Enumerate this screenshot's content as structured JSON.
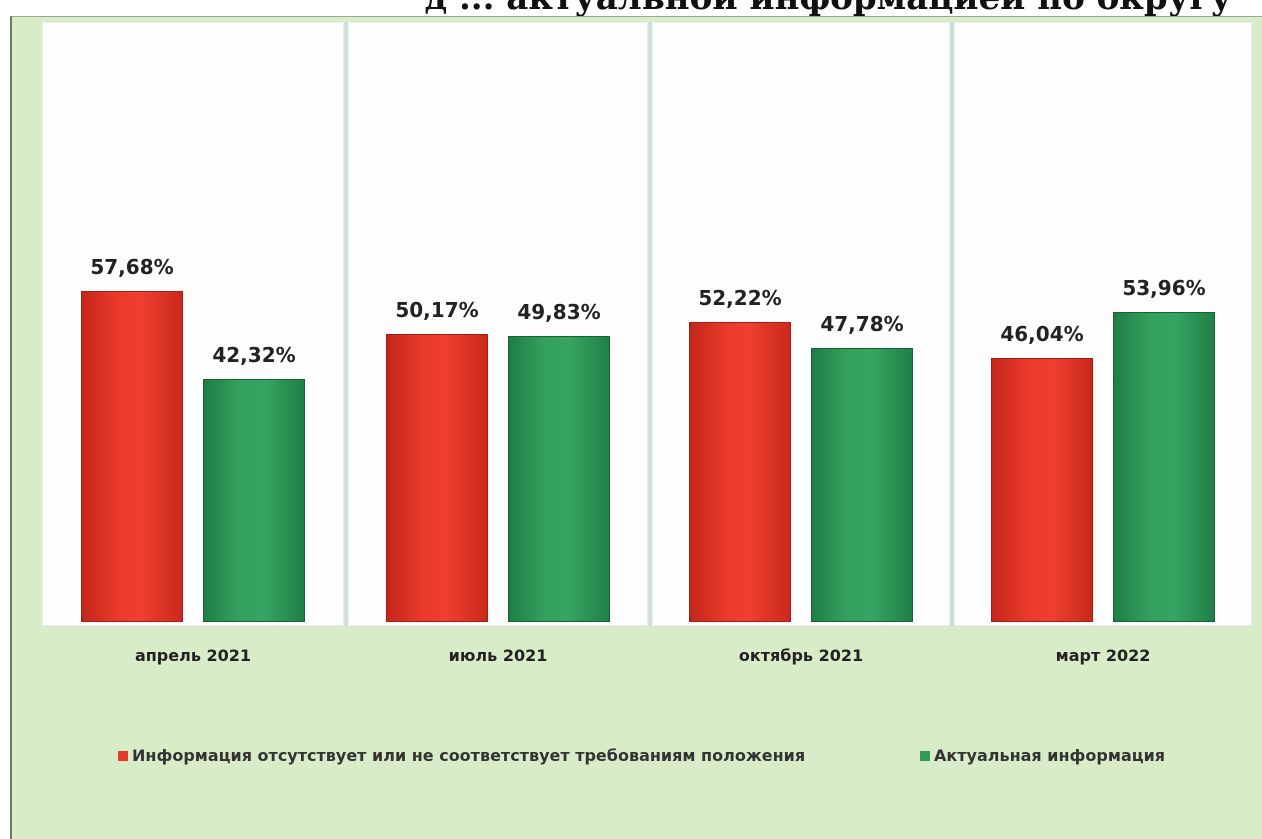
{
  "header": {
    "title_fragment": "д ... актуальной информацией по округу"
  },
  "chart_data": {
    "type": "bar",
    "categories": [
      "апрель 2021",
      "июль 2021",
      "октябрь 2021",
      "март 2022"
    ],
    "series": [
      {
        "name": "Информация отсутствует или не соответствует требованиям положения",
        "color": "#e53a2b",
        "values": [
          57.68,
          50.17,
          52.22,
          46.04
        ],
        "labels": [
          "57,68%",
          "50,17%",
          "52,22%",
          "46,04%"
        ]
      },
      {
        "name": "Актуальная информация",
        "color": "#2f9a59",
        "values": [
          42.32,
          49.83,
          47.78,
          53.96
        ],
        "labels": [
          "42,32%",
          "49,83%",
          "47,78%",
          "53,96%"
        ]
      }
    ],
    "title": "",
    "xlabel": "",
    "ylabel": "",
    "ylim": [
      0,
      100
    ],
    "grid": false,
    "legend": "bottom"
  }
}
